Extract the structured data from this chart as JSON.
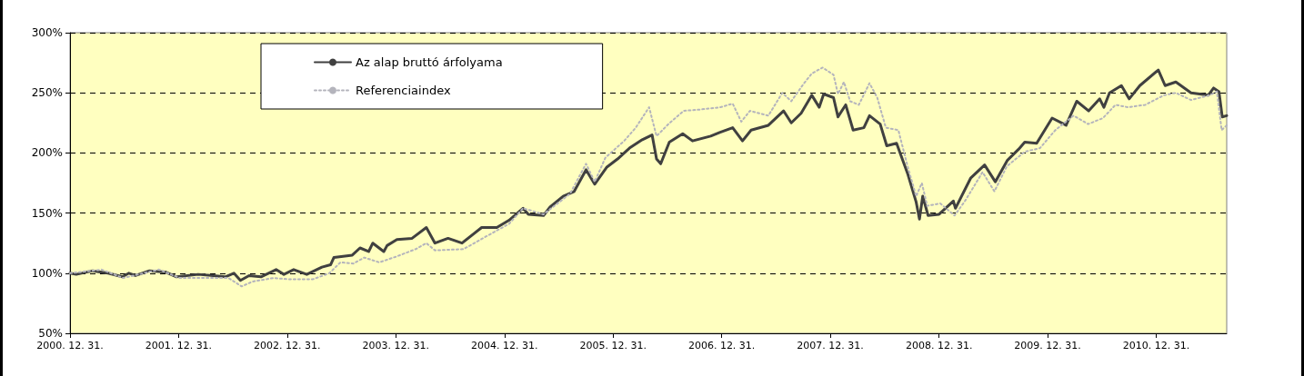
{
  "chart_data": {
    "type": "line",
    "legend": "top left",
    "grid": "y",
    "marker": "none",
    "xlim": [
      "2000-12-31",
      "2011-08-25"
    ],
    "ylim": [
      50,
      300
    ],
    "xticks": [
      {
        "value": "2000-12-31",
        "label": "2000. 12. 31."
      },
      {
        "value": "2001-12-31",
        "label": "2001. 12. 31."
      },
      {
        "value": "2002-12-31",
        "label": "2002. 12. 31."
      },
      {
        "value": "2003-12-31",
        "label": "2003. 12. 31."
      },
      {
        "value": "2004-12-31",
        "label": "2004. 12. 31."
      },
      {
        "value": "2005-12-31",
        "label": "2005. 12. 31."
      },
      {
        "value": "2006-12-31",
        "label": "2006. 12. 31."
      },
      {
        "value": "2007-12-31",
        "label": "2007. 12. 31."
      },
      {
        "value": "2008-12-31",
        "label": "2008. 12. 31."
      },
      {
        "value": "2009-12-31",
        "label": "2009. 12. 31."
      },
      {
        "value": "2010-12-31",
        "label": "2010. 12. 31."
      }
    ],
    "yticks": [
      {
        "value": 50,
        "label": "50%"
      },
      {
        "value": 100,
        "label": "100%"
      },
      {
        "value": 150,
        "label": "150%"
      },
      {
        "value": 200,
        "label": "200%"
      },
      {
        "value": 250,
        "label": "250%"
      },
      {
        "value": 300,
        "label": "300%"
      }
    ],
    "series": [
      {
        "name": "Az alap bruttó árfolyama",
        "color": "#404040",
        "line_style": "solid",
        "x": [
          "2000-12-31",
          "2001-01-21",
          "2001-03-17",
          "2001-05-08",
          "2001-06-25",
          "2001-07-17",
          "2001-08-08",
          "2001-09-24",
          "2001-11-16",
          "2001-12-24",
          "2002-03-07",
          "2002-04-27",
          "2002-06-06",
          "2002-07-05",
          "2002-07-27",
          "2002-08-25",
          "2002-10-04",
          "2002-11-24",
          "2002-12-20",
          "2003-01-22",
          "2003-03-07",
          "2003-04-27",
          "2003-05-26",
          "2003-06-06",
          "2003-08-07",
          "2003-09-02",
          "2003-10-01",
          "2003-10-15",
          "2003-11-21",
          "2003-12-02",
          "2004-01-04",
          "2004-02-24",
          "2004-04-12",
          "2004-05-11",
          "2004-06-24",
          "2004-08-10",
          "2004-10-15",
          "2004-12-05",
          "2005-01-15",
          "2005-03-03",
          "2005-03-21",
          "2005-05-11",
          "2005-06-02",
          "2005-07-16",
          "2005-08-22",
          "2005-10-01",
          "2005-10-30",
          "2005-12-09",
          "2006-01-15",
          "2006-02-24",
          "2006-04-08",
          "2006-05-11",
          "2006-05-26",
          "2006-06-09",
          "2006-07-08",
          "2006-08-22",
          "2006-09-24",
          "2006-11-24",
          "2006-12-24",
          "2007-02-06",
          "2007-03-11",
          "2007-04-09",
          "2007-06-06",
          "2007-07-27",
          "2007-08-22",
          "2007-09-24",
          "2007-10-30",
          "2007-11-24",
          "2007-12-09",
          "2008-01-11",
          "2008-01-26",
          "2008-02-21",
          "2008-03-17",
          "2008-04-22",
          "2008-05-11",
          "2008-06-16",
          "2008-07-08",
          "2008-08-10",
          "2008-09-16",
          "2008-10-15",
          "2008-10-26",
          "2008-11-06",
          "2008-11-24",
          "2008-12-31",
          "2009-02-17",
          "2009-02-24",
          "2009-04-16",
          "2009-06-02",
          "2009-07-08",
          "2009-08-18",
          "2009-09-24",
          "2009-10-15",
          "2009-11-24",
          "2010-01-15",
          "2010-03-03",
          "2010-04-08",
          "2010-05-18",
          "2010-06-24",
          "2010-07-08",
          "2010-07-27",
          "2010-09-05",
          "2010-10-01",
          "2010-11-06",
          "2011-01-07",
          "2011-01-30",
          "2011-03-07",
          "2011-04-27",
          "2011-06-24",
          "2011-07-12",
          "2011-07-30",
          "2011-08-10",
          "2011-08-25"
        ],
        "values": [
          100,
          99,
          102,
          100,
          97,
          100,
          98,
          102,
          101,
          97,
          99,
          98,
          97,
          100,
          94,
          98,
          97,
          103,
          99,
          103,
          99,
          105,
          107,
          113,
          115,
          121,
          118,
          125,
          118,
          123,
          128,
          129,
          138,
          125,
          129,
          125,
          138,
          138,
          144,
          154,
          149,
          148,
          155,
          164,
          168,
          186,
          174,
          188,
          195,
          204,
          211,
          215,
          195,
          191,
          209,
          216,
          210,
          214,
          217,
          221,
          210,
          219,
          223,
          235,
          225,
          233,
          248,
          238,
          249,
          246,
          230,
          240,
          219,
          221,
          231,
          224,
          206,
          208,
          183,
          159,
          145,
          164,
          148,
          149,
          160,
          154,
          179,
          190,
          176,
          194,
          203,
          209,
          208,
          229,
          223,
          243,
          235,
          245,
          238,
          250,
          256,
          245,
          256,
          269,
          256,
          259,
          250,
          248,
          254,
          251,
          230,
          231
        ]
      },
      {
        "name": "Referenciaindex",
        "color": "#b4b4bc",
        "line_style": "dotted",
        "x": [
          "2000-12-31",
          "2001-04-16",
          "2001-06-28",
          "2001-10-26",
          "2002-01-04",
          "2002-04-27",
          "2002-06-17",
          "2002-07-31",
          "2002-09-05",
          "2002-11-16",
          "2003-01-04",
          "2003-03-28",
          "2003-05-22",
          "2003-06-28",
          "2003-08-11",
          "2003-09-16",
          "2003-11-06",
          "2004-01-04",
          "2004-03-07",
          "2004-04-12",
          "2004-05-11",
          "2004-08-15",
          "2004-11-24",
          "2005-01-15",
          "2005-03-03",
          "2005-05-11",
          "2005-08-08",
          "2005-10-01",
          "2005-10-30",
          "2005-12-05",
          "2006-02-06",
          "2006-03-17",
          "2006-05-01",
          "2006-05-26",
          "2006-07-05",
          "2006-08-25",
          "2006-10-15",
          "2006-12-27",
          "2007-02-06",
          "2007-03-07",
          "2007-04-05",
          "2007-06-06",
          "2007-07-23",
          "2007-08-22",
          "2007-10-04",
          "2007-10-30",
          "2007-12-05",
          "2008-01-11",
          "2008-01-26",
          "2008-02-15",
          "2008-03-07",
          "2008-04-05",
          "2008-05-11",
          "2008-06-06",
          "2008-07-05",
          "2008-08-16",
          "2008-09-16",
          "2008-10-15",
          "2008-11-03",
          "2008-11-21",
          "2009-01-04",
          "2009-02-21",
          "2009-03-28",
          "2009-05-26",
          "2009-07-05",
          "2009-08-16",
          "2009-10-15",
          "2009-12-05",
          "2010-01-26",
          "2010-03-28",
          "2010-05-16",
          "2010-07-05",
          "2010-08-16",
          "2010-09-27",
          "2010-11-24",
          "2011-01-26",
          "2011-03-07",
          "2011-04-27",
          "2011-06-28",
          "2011-07-23",
          "2011-08-08",
          "2011-08-25"
        ],
        "values": [
          100,
          103,
          96,
          103,
          96,
          96,
          96,
          89,
          93,
          96,
          95,
          95,
          100,
          109,
          108,
          113,
          109,
          114,
          120,
          125,
          119,
          120,
          134,
          141,
          154,
          149,
          166,
          191,
          176,
          196,
          210,
          221,
          238,
          214,
          224,
          235,
          236,
          238,
          241,
          226,
          235,
          231,
          250,
          243,
          258,
          266,
          271,
          265,
          249,
          259,
          243,
          240,
          258,
          246,
          221,
          219,
          189,
          164,
          175,
          156,
          158,
          148,
          160,
          184,
          168,
          189,
          201,
          204,
          219,
          231,
          224,
          229,
          240,
          238,
          240,
          248,
          250,
          244,
          248,
          251,
          219,
          223
        ]
      }
    ]
  }
}
